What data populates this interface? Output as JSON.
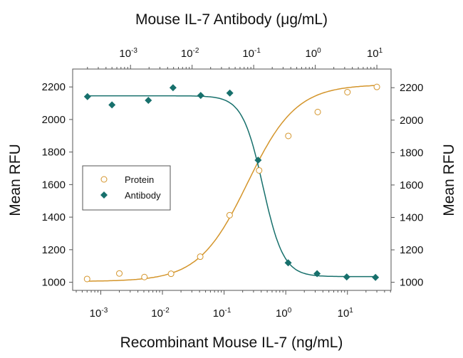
{
  "chart_data": {
    "type": "scatter",
    "title": "Mouse IL-7 Antibody (μg/mL)",
    "xlabel": "Recombinant Mouse IL-7 (ng/mL)",
    "x2label": "Mouse IL-7 Antibody (μg/mL)",
    "ylabel": "Mean RFU",
    "y2label": "Mean RFU",
    "xscale": "log",
    "xlim": [
      0.00035,
      51
    ],
    "x2lim": [
      0.000115,
      17
    ],
    "ylim": [
      950,
      2310
    ],
    "y2lim": [
      950,
      2315
    ],
    "grid": false,
    "legend_position": "center-left",
    "xticks": [
      {
        "base": "10",
        "exp": "-3",
        "v": 0.001
      },
      {
        "base": "10",
        "exp": "-2",
        "v": 0.01
      },
      {
        "base": "10",
        "exp": "-1",
        "v": 0.1
      },
      {
        "base": "10",
        "exp": "0",
        "v": 1
      },
      {
        "base": "10",
        "exp": "1",
        "v": 10
      }
    ],
    "x2ticks": [
      {
        "base": "10",
        "exp": "-3",
        "v": 0.001
      },
      {
        "base": "10",
        "exp": "-2",
        "v": 0.01
      },
      {
        "base": "10",
        "exp": "-1",
        "v": 0.1
      },
      {
        "base": "10",
        "exp": "0",
        "v": 1
      },
      {
        "base": "10",
        "exp": "1",
        "v": 10
      }
    ],
    "yticks": [
      "1000",
      "1200",
      "1400",
      "1600",
      "1800",
      "2000",
      "2200"
    ],
    "y2ticks": [
      "1000",
      "1200",
      "1400",
      "1600",
      "1800",
      "2000",
      "2200"
    ],
    "series": [
      {
        "name": "Protein",
        "axis": "bottom-left",
        "marker": "open-circle",
        "color": "#d4952b",
        "x": [
          0.0006,
          0.002,
          0.0051,
          0.0138,
          0.041,
          0.123,
          0.37,
          1.1,
          3.3,
          10,
          30
        ],
        "y": [
          1020,
          1054,
          1032,
          1052,
          1157,
          1412,
          1687,
          1899,
          2046,
          2168,
          2200
        ],
        "fit": {
          "bottom": 1005,
          "top": 2215,
          "logEC50": -0.62,
          "hill": 1.1
        }
      },
      {
        "name": "Antibody",
        "axis": "top-right",
        "marker": "filled-diamond",
        "color": "#17706c",
        "x": [
          0.0002,
          0.0005,
          0.00195,
          0.0049,
          0.0138,
          0.041,
          0.118,
          0.363,
          1.07,
          3.24,
          9.5
        ],
        "y": [
          2145,
          2094,
          2122,
          2200,
          2152,
          2167,
          1753,
          1120,
          1053,
          1033,
          1030
        ],
        "fit": {
          "bottom": 1035,
          "top": 2150,
          "logEC50": -0.85,
          "hill": 2.6
        }
      }
    ]
  }
}
